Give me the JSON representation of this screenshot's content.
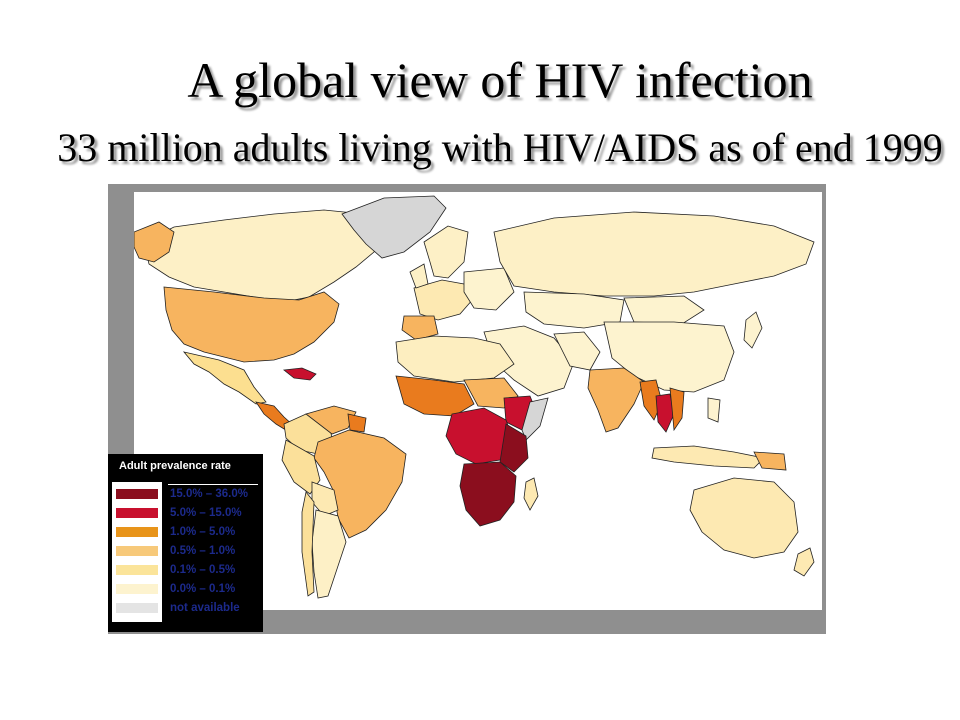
{
  "title": "A global view of HIV infection",
  "subtitle": "33 million adults living with HIV/AIDS as of end 1999",
  "legend": {
    "title": "Adult prevalence rate",
    "items": [
      {
        "label": "15.0% – 36.0%",
        "color": "#8b0e1e"
      },
      {
        "label": "5.0% – 15.0%",
        "color": "#c8102e"
      },
      {
        "label": "1.0% –   5.0%",
        "color": "#e8941a"
      },
      {
        "label": "0.5% –   1.0%",
        "color": "#f7c97a"
      },
      {
        "label": "0.1% –   0.5%",
        "color": "#fbe49a"
      },
      {
        "label": "0.0% –   0.1%",
        "color": "#fdf3cf"
      },
      {
        "label": "not available",
        "color": "#e4e4e4"
      }
    ]
  }
}
